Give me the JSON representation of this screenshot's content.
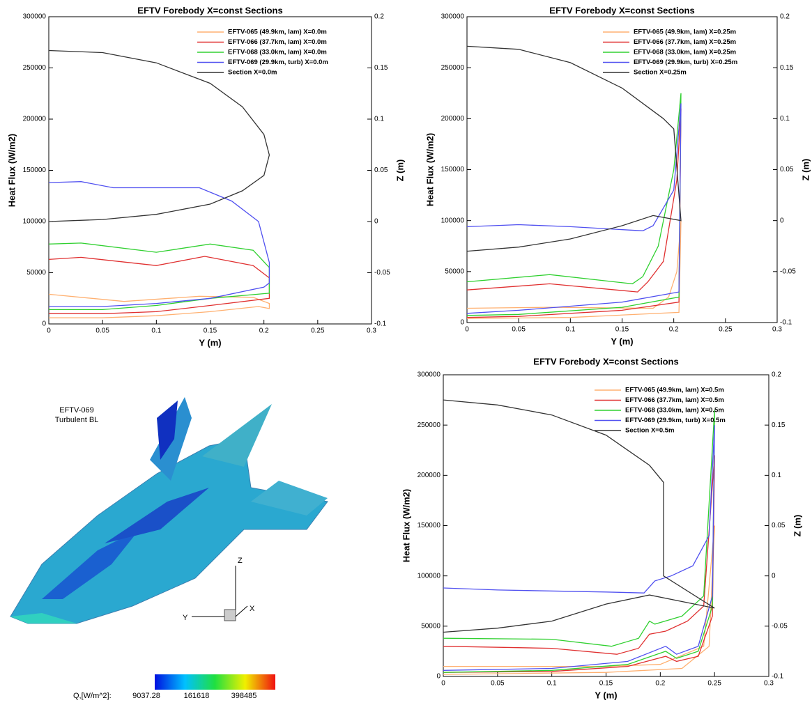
{
  "chart_data": [
    {
      "type": "line",
      "title": "EFTV Forebody X=const Sections",
      "xlabel": "Y (m)",
      "ylabel": "Heat Flux (W/m2)",
      "y2label": "Z (m)",
      "xlim": [
        0,
        0.3
      ],
      "xticks": [
        0,
        0.05,
        0.1,
        0.15,
        0.2,
        0.25,
        0.3
      ],
      "ylim": [
        0,
        300000
      ],
      "yticks": [
        0,
        50000,
        100000,
        150000,
        200000,
        250000,
        300000
      ],
      "y2lim": [
        -0.1,
        0.2
      ],
      "y2ticks": [
        -0.1,
        -0.05,
        0,
        0.05,
        0.1,
        0.15,
        0.2
      ],
      "grid": false,
      "legend": "upper right",
      "series": [
        {
          "name": "EFTV-065 (49.9km, lam) X=0.0m",
          "color": "#ffb070",
          "x": [
            0,
            0.07,
            0.14,
            0.19,
            0.205,
            0.205,
            0.195,
            0.15,
            0.1,
            0.05,
            0
          ],
          "values": [
            29000,
            22000,
            27000,
            26000,
            20000,
            15000,
            17000,
            12000,
            8000,
            6000,
            6000
          ]
        },
        {
          "name": "EFTV-066 (37.7km, lam) X=0.0m",
          "color": "#e03030",
          "x": [
            0,
            0.03,
            0.1,
            0.145,
            0.19,
            0.205,
            0.205,
            0.15,
            0.1,
            0.05,
            0
          ],
          "values": [
            63000,
            65000,
            57000,
            66000,
            57000,
            45000,
            25000,
            18000,
            12000,
            10000,
            10000
          ]
        },
        {
          "name": "EFTV-068 (33.0km, lam) X=0.0m",
          "color": "#30d030",
          "x": [
            0,
            0.03,
            0.1,
            0.15,
            0.19,
            0.205,
            0.205,
            0.15,
            0.1,
            0.05,
            0
          ],
          "values": [
            78000,
            79000,
            70000,
            78000,
            72000,
            55000,
            30000,
            25000,
            18000,
            14000,
            14000
          ]
        },
        {
          "name": "EFTV-069 (29.9km, turb) X=0.0m",
          "color": "#5050f0",
          "x": [
            0,
            0.03,
            0.06,
            0.14,
            0.17,
            0.195,
            0.205,
            0.205,
            0.2,
            0.15,
            0.1,
            0.05,
            0
          ],
          "values": [
            138000,
            139000,
            133000,
            133000,
            120000,
            100000,
            60000,
            40000,
            36000,
            25000,
            20000,
            17000,
            17000
          ]
        },
        {
          "name": "Section X=0.0m",
          "color": "#333333",
          "axis": "y2",
          "x": [
            0,
            0.05,
            0.1,
            0.15,
            0.18,
            0.2,
            0.205,
            0.2,
            0.18,
            0.15,
            0.1,
            0.05,
            0
          ],
          "values": [
            0.167,
            0.165,
            0.155,
            0.135,
            0.112,
            0.085,
            0.065,
            0.045,
            0.03,
            0.017,
            0.007,
            0.002,
            0
          ]
        }
      ]
    },
    {
      "type": "line",
      "title": "EFTV Forebody X=const Sections",
      "xlabel": "Y (m)",
      "ylabel": "Heat Flux (W/m2)",
      "y2label": "Z (m)",
      "xlim": [
        0,
        0.3
      ],
      "xticks": [
        0,
        0.05,
        0.1,
        0.15,
        0.2,
        0.25,
        0.3
      ],
      "ylim": [
        0,
        300000
      ],
      "yticks": [
        0,
        50000,
        100000,
        150000,
        200000,
        250000,
        300000
      ],
      "y2lim": [
        -0.1,
        0.2
      ],
      "y2ticks": [
        -0.1,
        -0.05,
        0,
        0.05,
        0.1,
        0.15,
        0.2
      ],
      "grid": false,
      "legend": "upper right",
      "series": [
        {
          "name": "EFTV-065 (49.9km, lam) X=0.25m",
          "color": "#ffb070",
          "x": [
            0,
            0.08,
            0.18,
            0.195,
            0.203,
            0.207,
            0.205,
            0.1,
            0
          ],
          "values": [
            14000,
            15000,
            14000,
            25000,
            50000,
            100000,
            10000,
            5000,
            4000
          ]
        },
        {
          "name": "EFTV-066 (37.7km, lam) X=0.25m",
          "color": "#e03030",
          "x": [
            0,
            0.08,
            0.165,
            0.175,
            0.19,
            0.203,
            0.207,
            0.205,
            0.15,
            0.05,
            0
          ],
          "values": [
            32000,
            38000,
            30000,
            40000,
            60000,
            140000,
            210000,
            20000,
            12000,
            6000,
            5000
          ]
        },
        {
          "name": "EFTV-068 (33.0km, lam) X=0.25m",
          "color": "#30d030",
          "x": [
            0,
            0.08,
            0.16,
            0.17,
            0.185,
            0.2,
            0.207,
            0.205,
            0.15,
            0.05,
            0
          ],
          "values": [
            40000,
            47000,
            38000,
            45000,
            75000,
            150000,
            225000,
            25000,
            15000,
            8000,
            7000
          ]
        },
        {
          "name": "EFTV-069 (29.9km, turb) X=0.25m",
          "color": "#5050f0",
          "x": [
            0,
            0.05,
            0.1,
            0.17,
            0.18,
            0.2,
            0.207,
            0.205,
            0.15,
            0.05,
            0
          ],
          "values": [
            94000,
            96000,
            94000,
            90000,
            95000,
            130000,
            215000,
            30000,
            20000,
            12000,
            9000
          ]
        },
        {
          "name": "Section X=0.25m",
          "color": "#333333",
          "axis": "y2",
          "x": [
            0,
            0.05,
            0.1,
            0.15,
            0.19,
            0.2,
            0.207,
            0.18,
            0.15,
            0.1,
            0.05,
            0
          ],
          "values": [
            0.171,
            0.168,
            0.155,
            0.13,
            0.1,
            0.09,
            0,
            0.005,
            -0.005,
            -0.018,
            -0.026,
            -0.03
          ]
        }
      ]
    },
    {
      "type": "line",
      "title": "EFTV Forebody X=const Sections",
      "xlabel": "Y (m)",
      "ylabel": "Heat Flux (W/m2)",
      "y2label": "Z (m)",
      "xlim": [
        0,
        0.3
      ],
      "xticks": [
        0,
        0.05,
        0.1,
        0.15,
        0.2,
        0.25,
        0.3
      ],
      "ylim": [
        0,
        300000
      ],
      "yticks": [
        0,
        50000,
        100000,
        150000,
        200000,
        250000,
        300000
      ],
      "y2lim": [
        -0.1,
        0.2
      ],
      "y2ticks": [
        -0.1,
        -0.05,
        0,
        0.05,
        0.1,
        0.15,
        0.2
      ],
      "grid": false,
      "legend": "upper right",
      "series": [
        {
          "name": "EFTV-065 (49.9km, lam) X=0.5m",
          "color": "#ffb070",
          "x": [
            0,
            0.15,
            0.2,
            0.24,
            0.25,
            0.245,
            0.22,
            0.15,
            0
          ],
          "values": [
            10000,
            10000,
            12000,
            30000,
            150000,
            30000,
            8000,
            4000,
            2000
          ]
        },
        {
          "name": "EFTV-066 (37.7km, lam) X=0.5m",
          "color": "#e03030",
          "x": [
            0,
            0.1,
            0.16,
            0.18,
            0.19,
            0.205,
            0.225,
            0.24,
            0.25,
            0.248,
            0.235,
            0.215,
            0.205,
            0.17,
            0.1,
            0
          ],
          "values": [
            30000,
            28000,
            22000,
            28000,
            42000,
            45000,
            55000,
            70000,
            220000,
            60000,
            20000,
            15000,
            20000,
            10000,
            5000,
            4000
          ]
        },
        {
          "name": "EFTV-068 (33.0km, lam) X=0.5m",
          "color": "#30d030",
          "x": [
            0,
            0.1,
            0.155,
            0.18,
            0.19,
            0.195,
            0.22,
            0.24,
            0.25,
            0.248,
            0.235,
            0.215,
            0.205,
            0.17,
            0.1,
            0
          ],
          "values": [
            38000,
            37000,
            30000,
            38000,
            55000,
            52000,
            60000,
            80000,
            265000,
            70000,
            25000,
            18000,
            25000,
            12000,
            6000,
            4000
          ]
        },
        {
          "name": "EFTV-069 (29.9km, turb) X=0.5m",
          "color": "#5050f0",
          "x": [
            0,
            0.05,
            0.15,
            0.185,
            0.195,
            0.21,
            0.23,
            0.245,
            0.25,
            0.248,
            0.235,
            0.215,
            0.205,
            0.17,
            0.1,
            0
          ],
          "values": [
            88000,
            86000,
            84000,
            83000,
            95000,
            100000,
            110000,
            140000,
            250000,
            80000,
            30000,
            22000,
            30000,
            15000,
            8000,
            6000
          ]
        },
        {
          "name": "Section X=0.5m",
          "color": "#333333",
          "axis": "y2",
          "x": [
            0,
            0.05,
            0.1,
            0.15,
            0.19,
            0.203,
            0.203,
            0.25,
            0.19,
            0.15,
            0.1,
            0.05,
            0
          ],
          "values": [
            0.175,
            0.17,
            0.16,
            0.14,
            0.11,
            0.093,
            0,
            -0.032,
            -0.019,
            -0.028,
            -0.045,
            -0.052,
            -0.056
          ]
        }
      ]
    }
  ],
  "figure": {
    "label": [
      "EFTV-069",
      "Turbulent BL"
    ],
    "axes": [
      "Z",
      "Y",
      "X"
    ],
    "colorbar": {
      "label": "Q,[W/m^2]:",
      "ticks": [
        9037.28,
        161618,
        398485
      ]
    }
  }
}
